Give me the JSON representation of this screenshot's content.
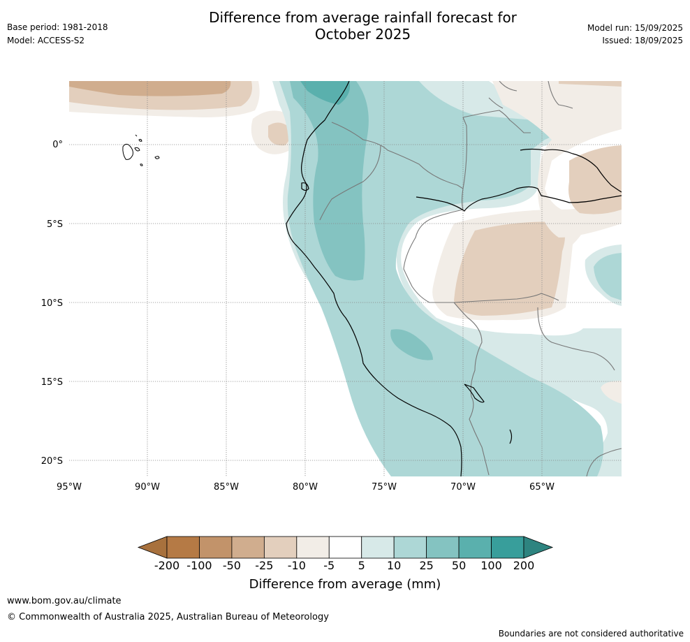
{
  "header": {
    "base_period": "Base period: 1981-2018",
    "model": "Model: ACCESS-S2",
    "title_line1": "Difference from average rainfall forecast for",
    "title_line2": "October 2025",
    "model_run": "Model run: 15/09/2025",
    "issued": "Issued: 18/09/2025"
  },
  "map": {
    "lat_labels": [
      "0°",
      "5°S",
      "10°S",
      "15°S",
      "20°S"
    ],
    "lon_labels": [
      "95°W",
      "90°W",
      "85°W",
      "80°W",
      "75°W",
      "70°W",
      "65°W"
    ]
  },
  "legend": {
    "title": "Difference from average (mm)",
    "ticks": [
      "-200",
      "-100",
      "-50",
      "-25",
      "-10",
      "-5",
      "5",
      "10",
      "25",
      "50",
      "100",
      "200"
    ],
    "colors": [
      "#a8713d",
      "#b57a45",
      "#c2936a",
      "#d0ad8e",
      "#e3cfbd",
      "#f2ede7",
      "#ffffff",
      "#d7e9e8",
      "#add7d6",
      "#84c3c1",
      "#5ab0ad",
      "#389e9b",
      "#2e8480"
    ]
  },
  "footer": {
    "website": "www.bom.gov.au/climate",
    "copyright": "© Commonwealth of Australia 2025, Australian Bureau of Meteorology",
    "disclaimer": "Boundaries are not considered authoritative"
  }
}
